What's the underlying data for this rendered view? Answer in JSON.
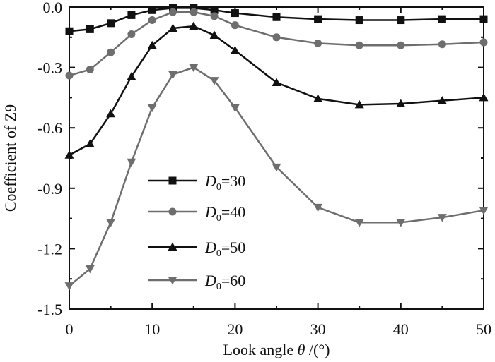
{
  "chart_data": {
    "type": "line",
    "title": "",
    "xlabel": "Look angle",
    "xlabel_symbol": "θ",
    "xlabel_unit": "/(°)",
    "ylabel": "Coefficient of Z9",
    "xlim": [
      0,
      50
    ],
    "ylim": [
      -1.5,
      0.0
    ],
    "x_ticks": [
      0,
      10,
      20,
      30,
      40,
      50
    ],
    "y_ticks": [
      0.0,
      -0.3,
      -0.6,
      -0.9,
      -1.2,
      -1.5
    ],
    "x_tick_labels": [
      "0",
      "10",
      "20",
      "30",
      "40",
      "50"
    ],
    "y_tick_labels": [
      "0.0",
      "-0.3",
      "-0.6",
      "-0.9",
      "-1.2",
      "-1.5"
    ],
    "grid": false,
    "legend_position": "lower-left",
    "series": [
      {
        "name": "D0=30",
        "legend_base": "D",
        "legend_sub": "0",
        "legend_value": "=30",
        "color": "#111111",
        "marker": "square",
        "x": [
          0,
          2.5,
          5,
          7.5,
          10,
          12.5,
          15,
          17.5,
          20,
          25,
          30,
          35,
          40,
          45,
          50
        ],
        "y": [
          -0.12,
          -0.11,
          -0.08,
          -0.04,
          -0.015,
          -0.005,
          -0.005,
          -0.015,
          -0.03,
          -0.05,
          -0.06,
          -0.065,
          -0.065,
          -0.06,
          -0.06
        ]
      },
      {
        "name": "D0=40",
        "legend_base": "D",
        "legend_sub": "0",
        "legend_value": "=40",
        "color": "#6e6e6e",
        "marker": "circle",
        "x": [
          0,
          2.5,
          5,
          7.5,
          10,
          12.5,
          15,
          17.5,
          20,
          25,
          30,
          35,
          40,
          45,
          50
        ],
        "y": [
          -0.34,
          -0.31,
          -0.225,
          -0.135,
          -0.065,
          -0.025,
          -0.025,
          -0.045,
          -0.09,
          -0.15,
          -0.18,
          -0.19,
          -0.19,
          -0.185,
          -0.175
        ]
      },
      {
        "name": "D0=50",
        "legend_base": "D",
        "legend_sub": "0",
        "legend_value": "=50",
        "color": "#111111",
        "marker": "triangle-up",
        "x": [
          0,
          2.5,
          5,
          7.5,
          10,
          12.5,
          15,
          17.5,
          20,
          25,
          30,
          35,
          40,
          45,
          50
        ],
        "y": [
          -0.735,
          -0.68,
          -0.53,
          -0.345,
          -0.19,
          -0.105,
          -0.095,
          -0.14,
          -0.215,
          -0.375,
          -0.455,
          -0.485,
          -0.48,
          -0.465,
          -0.45
        ]
      },
      {
        "name": "D0=60",
        "legend_base": "D",
        "legend_sub": "0",
        "legend_value": "=60",
        "color": "#6e6e6e",
        "marker": "triangle-down",
        "x": [
          0,
          2.5,
          5,
          7.5,
          10,
          12.5,
          15,
          17.5,
          20,
          25,
          30,
          35,
          40,
          45,
          50
        ],
        "y": [
          -1.385,
          -1.3,
          -1.07,
          -0.77,
          -0.5,
          -0.335,
          -0.3,
          -0.365,
          -0.5,
          -0.795,
          -0.995,
          -1.07,
          -1.07,
          -1.045,
          -1.01
        ]
      }
    ]
  }
}
